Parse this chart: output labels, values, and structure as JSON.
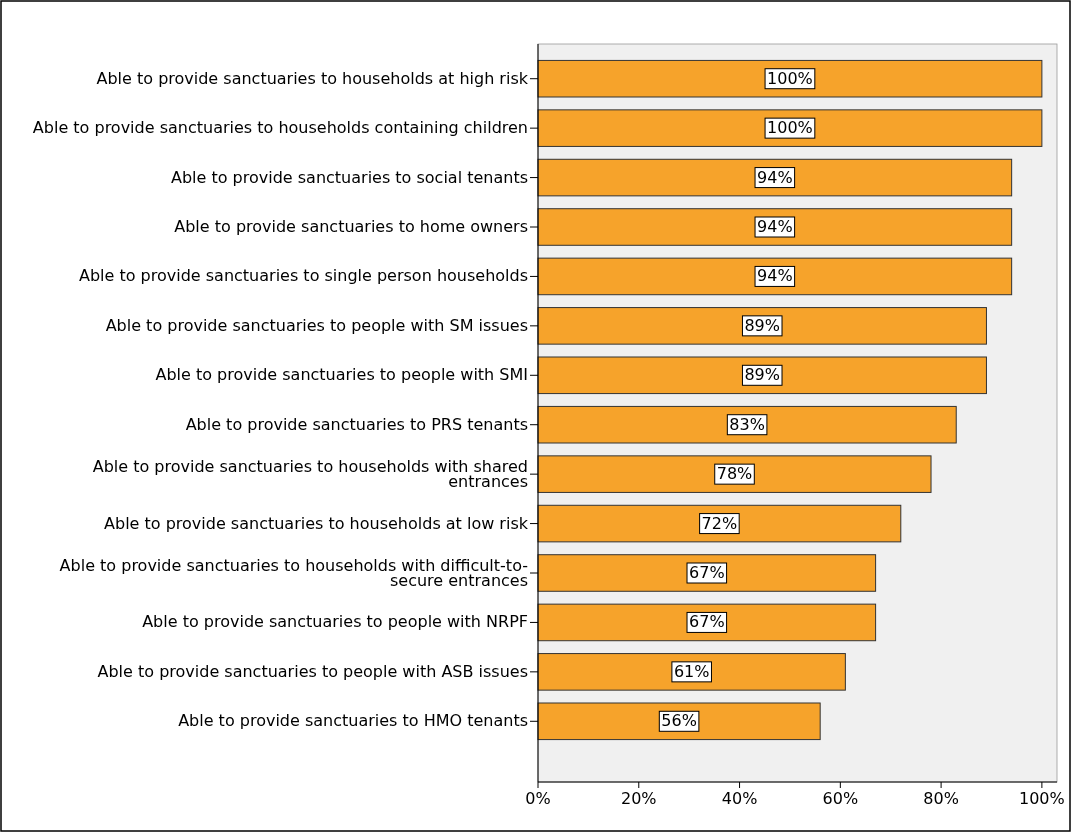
{
  "chart_data": {
    "type": "bar",
    "orientation": "horizontal",
    "categories": [
      "Able to provide sanctuaries to households at high risk",
      "Able to provide sanctuaries to households containing children",
      "Able to provide sanctuaries to social tenants",
      "Able to provide sanctuaries to home owners",
      "Able to provide sanctuaries to single person households",
      "Able to provide sanctuaries to people with SM issues",
      "Able to provide sanctuaries to people with SMI",
      "Able to provide sanctuaries to PRS tenants",
      "Able to provide sanctuaries to households with shared entrances",
      "Able to provide sanctuaries to households at low risk",
      "Able to provide sanctuaries to households with difficult-to-secure entrances",
      "Able to provide sanctuaries to people with NRPF",
      "Able to provide sanctuaries to people with ASB issues",
      "Able to provide sanctuaries to HMO tenants"
    ],
    "values": [
      100,
      100,
      94,
      94,
      94,
      89,
      89,
      83,
      78,
      72,
      67,
      67,
      61,
      56
    ],
    "color": "#f6a32b",
    "xlim": [
      0,
      103
    ],
    "xticks": [
      {
        "value": 0,
        "label": "0%"
      },
      {
        "value": 20,
        "label": "20%"
      },
      {
        "value": 40,
        "label": "40%"
      },
      {
        "value": 60,
        "label": "60%"
      },
      {
        "value": 80,
        "label": "80%"
      },
      {
        "value": 100,
        "label": "100%"
      }
    ],
    "value_labels": [
      "100%",
      "100%",
      "94%",
      "94%",
      "94%",
      "89%",
      "89%",
      "83%",
      "78%",
      "72%",
      "67%",
      "67%",
      "61%",
      "56%"
    ],
    "grid": false
  }
}
